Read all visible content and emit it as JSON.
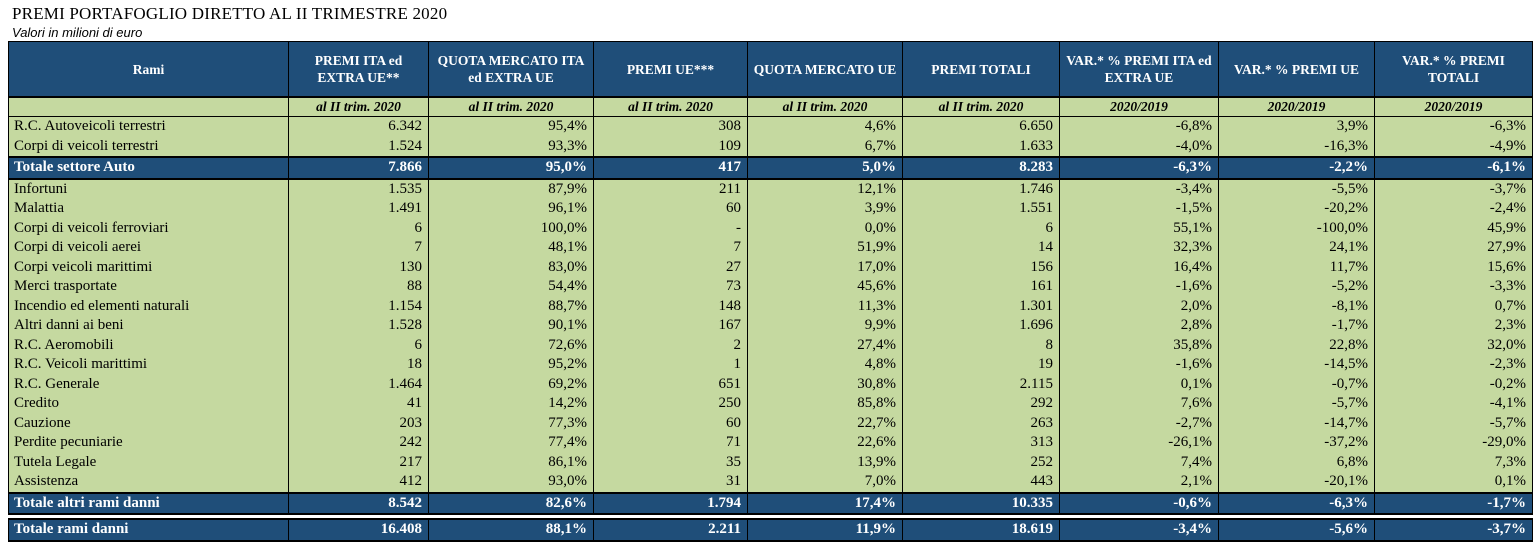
{
  "title": "PREMI PORTAFOGLIO DIRETTO AL II TRIMESTRE 2020",
  "subtitle": "Valori in milioni di euro",
  "headers": [
    "Rami",
    "PREMI ITA ed EXTRA UE**",
    "QUOTA MERCATO ITA ed EXTRA UE",
    "PREMI UE***",
    "QUOTA MERCATO UE",
    "PREMI TOTALI",
    "VAR.* % PREMI ITA ed EXTRA UE",
    "VAR.* % PREMI UE",
    "VAR.* % PREMI TOTALI"
  ],
  "subheaders": [
    "",
    "al II trim. 2020",
    "al II trim. 2020",
    "al II trim. 2020",
    "al II trim. 2020",
    "al II trim. 2020",
    "2020/2019",
    "2020/2019",
    "2020/2019"
  ],
  "group1": [
    [
      "R.C. Autoveicoli terrestri",
      "6.342",
      "95,4%",
      "308",
      "4,6%",
      "6.650",
      "-6,8%",
      "3,9%",
      "-6,3%"
    ],
    [
      "Corpi di veicoli terrestri",
      "1.524",
      "93,3%",
      "109",
      "6,7%",
      "1.633",
      "-4,0%",
      "-16,3%",
      "-4,9%"
    ]
  ],
  "total_auto": [
    "Totale settore Auto",
    "7.866",
    "95,0%",
    "417",
    "5,0%",
    "8.283",
    "-6,3%",
    "-2,2%",
    "-6,1%"
  ],
  "group2": [
    [
      "Infortuni",
      "1.535",
      "87,9%",
      "211",
      "12,1%",
      "1.746",
      "-3,4%",
      "-5,5%",
      "-3,7%"
    ],
    [
      "Malattia",
      "1.491",
      "96,1%",
      "60",
      "3,9%",
      "1.551",
      "-1,5%",
      "-20,2%",
      "-2,4%"
    ],
    [
      "Corpi di veicoli ferroviari",
      "6",
      "100,0%",
      "-",
      "0,0%",
      "6",
      "55,1%",
      "-100,0%",
      "45,9%"
    ],
    [
      "Corpi di veicoli aerei",
      "7",
      "48,1%",
      "7",
      "51,9%",
      "14",
      "32,3%",
      "24,1%",
      "27,9%"
    ],
    [
      "Corpi veicoli marittimi",
      "130",
      "83,0%",
      "27",
      "17,0%",
      "156",
      "16,4%",
      "11,7%",
      "15,6%"
    ],
    [
      "Merci trasportate",
      "88",
      "54,4%",
      "73",
      "45,6%",
      "161",
      "-1,6%",
      "-5,2%",
      "-3,3%"
    ],
    [
      "Incendio ed elementi naturali",
      "1.154",
      "88,7%",
      "148",
      "11,3%",
      "1.301",
      "2,0%",
      "-8,1%",
      "0,7%"
    ],
    [
      "Altri danni ai beni",
      "1.528",
      "90,1%",
      "167",
      "9,9%",
      "1.696",
      "2,8%",
      "-1,7%",
      "2,3%"
    ],
    [
      "R.C. Aeromobili",
      "6",
      "72,6%",
      "2",
      "27,4%",
      "8",
      "35,8%",
      "22,8%",
      "32,0%"
    ],
    [
      "R.C. Veicoli marittimi",
      "18",
      "95,2%",
      "1",
      "4,8%",
      "19",
      "-1,6%",
      "-14,5%",
      "-2,3%"
    ],
    [
      "R.C. Generale",
      "1.464",
      "69,2%",
      "651",
      "30,8%",
      "2.115",
      "0,1%",
      "-0,7%",
      "-0,2%"
    ],
    [
      "Credito",
      "41",
      "14,2%",
      "250",
      "85,8%",
      "292",
      "7,6%",
      "-5,7%",
      "-4,1%"
    ],
    [
      "Cauzione",
      "203",
      "77,3%",
      "60",
      "22,7%",
      "263",
      "-2,7%",
      "-14,7%",
      "-5,7%"
    ],
    [
      "Perdite pecuniarie",
      "242",
      "77,4%",
      "71",
      "22,6%",
      "313",
      "-26,1%",
      "-37,2%",
      "-29,0%"
    ],
    [
      "Tutela Legale",
      "217",
      "86,1%",
      "35",
      "13,9%",
      "252",
      "7,4%",
      "6,8%",
      "7,3%"
    ],
    [
      "Assistenza",
      "412",
      "93,0%",
      "31",
      "7,0%",
      "443",
      "2,1%",
      "-20,1%",
      "0,1%"
    ]
  ],
  "total_altri": [
    "Totale altri rami danni",
    "8.542",
    "82,6%",
    "1.794",
    "17,4%",
    "10.335",
    "-0,6%",
    "-6,3%",
    "-1,7%"
  ],
  "total_danni": [
    "Totale rami danni",
    "16.408",
    "88,1%",
    "2.211",
    "11,9%",
    "18.619",
    "-3,4%",
    "-5,6%",
    "-3,7%"
  ]
}
